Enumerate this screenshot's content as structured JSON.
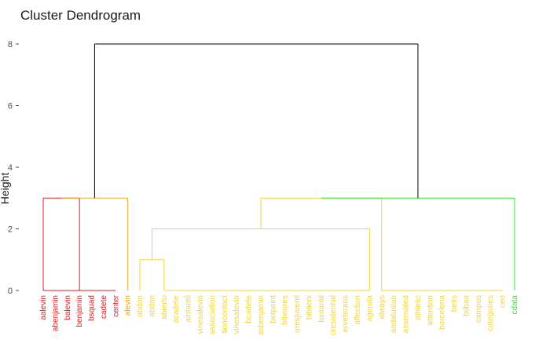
{
  "chart_data": {
    "type": "dendrogram",
    "title": "Cluster Dendrogram",
    "ylabel": "Height",
    "xlabel": "",
    "ylim": [
      0,
      8
    ],
    "yticks": [
      0,
      2,
      4,
      6,
      8
    ],
    "grid": false,
    "colors": {
      "red": "#e41a1c",
      "orange": "#f5a623",
      "yellow": "#f2d43a",
      "green": "#2ee82e",
      "root": "#000000"
    },
    "leaves": [
      {
        "label": "aalevin",
        "color": "red"
      },
      {
        "label": "abenjamin",
        "color": "red"
      },
      {
        "label": "balevin",
        "color": "red"
      },
      {
        "label": "benjamin",
        "color": "red"
      },
      {
        "label": "bsquad",
        "color": "red"
      },
      {
        "label": "cadete",
        "color": "red"
      },
      {
        "label": "center",
        "color": "red"
      },
      {
        "label": "alevin",
        "color": "orange"
      },
      {
        "label": "abdon",
        "color": "yellow"
      },
      {
        "label": "abdon",
        "color": "yellow"
      },
      {
        "label": "abierto",
        "color": "yellow"
      },
      {
        "label": "acadete",
        "color": "yellow"
      },
      {
        "label": "aintantil",
        "color": "yellow"
      },
      {
        "label": "vinesalevin",
        "color": "yellow"
      },
      {
        "label": "association",
        "color": "yellow"
      },
      {
        "label": "tioncontact",
        "color": "yellow"
      },
      {
        "label": "vinesalevin",
        "color": "yellow"
      },
      {
        "label": "bcadete",
        "color": "yellow"
      },
      {
        "label": "asbenjamin",
        "color": "yellow"
      },
      {
        "label": "betpoint",
        "color": "yellow"
      },
      {
        "label": "bfixtures",
        "color": "yellow"
      },
      {
        "label": "uresjuvenil",
        "color": "yellow"
      },
      {
        "label": "biblioni",
        "color": "yellow"
      },
      {
        "label": "bintantil",
        "color": "yellow"
      },
      {
        "label": "oresidential",
        "color": "yellow"
      },
      {
        "label": "erveterans",
        "color": "yellow"
      },
      {
        "label": "affection",
        "color": "yellow"
      },
      {
        "label": "agenda",
        "color": "yellow"
      },
      {
        "label": "always",
        "color": "yellow"
      },
      {
        "label": "andalusian",
        "color": "yellow"
      },
      {
        "label": "assembled",
        "color": "yellow"
      },
      {
        "label": "athletic",
        "color": "yellow"
      },
      {
        "label": "attention",
        "color": "yellow"
      },
      {
        "label": "barcelona",
        "color": "yellow"
      },
      {
        "label": "betis",
        "color": "yellow"
      },
      {
        "label": "bilbao",
        "color": "yellow"
      },
      {
        "label": "campos",
        "color": "yellow"
      },
      {
        "label": "categories",
        "color": "yellow"
      },
      {
        "label": "ceo",
        "color": "yellow"
      },
      {
        "label": "cdata",
        "color": "green"
      }
    ],
    "merges": [
      {
        "id": "rbase",
        "children": [
          "L0",
          "L1",
          "L2",
          "L3",
          "L4",
          "L5",
          "L6"
        ],
        "height": 0.0,
        "color": "red",
        "flat": true
      },
      {
        "id": "R",
        "children": [
          "L0",
          "rbase"
        ],
        "height": 3.0,
        "color": "red"
      },
      {
        "id": "RO",
        "children": [
          "R",
          "L7"
        ],
        "height": 3.0,
        "color": "orange"
      },
      {
        "id": "ab",
        "children": [
          "L8",
          "L10"
        ],
        "height": 1.0,
        "color": "yellow"
      },
      {
        "id": "ybase",
        "children": [
          "L10",
          "L11",
          "L12",
          "L13",
          "L14",
          "L15",
          "L16",
          "L17",
          "L18",
          "L19",
          "L20",
          "L21",
          "L22",
          "L23",
          "L24",
          "L25",
          "L26",
          "L27"
        ],
        "height": 0.0,
        "color": "yellow",
        "flat": true
      },
      {
        "id": "Y2",
        "children": [
          "ab",
          "L27"
        ],
        "height": 2.0,
        "color": "yellow"
      },
      {
        "id": "y2base",
        "children": [
          "L28",
          "L29",
          "L30",
          "L31",
          "L32",
          "L33",
          "L34",
          "L35",
          "L36",
          "L37",
          "L38"
        ],
        "height": 0.0,
        "color": "yellow",
        "flat": true
      },
      {
        "id": "Y3",
        "children": [
          "Y2",
          "L28"
        ],
        "height": 3.0,
        "color": "yellow"
      },
      {
        "id": "G",
        "children": [
          "Y3",
          "L39"
        ],
        "height": 3.0,
        "color": "green"
      },
      {
        "id": "ROOT",
        "children": [
          "RO",
          "G"
        ],
        "height": 8.0,
        "color": "root"
      }
    ]
  }
}
